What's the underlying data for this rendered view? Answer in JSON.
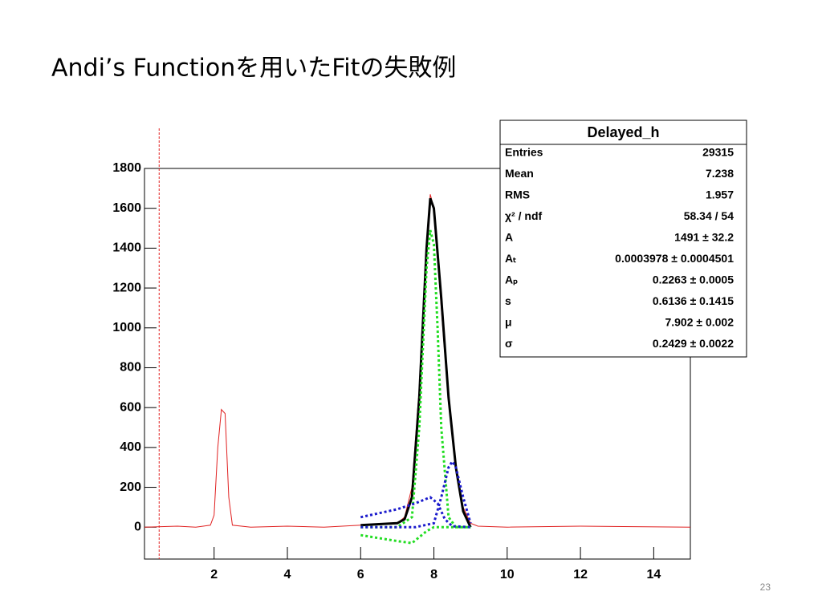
{
  "slide": {
    "title": "Andi’s Functionを用いたFitの失敗例",
    "page_number": "23"
  },
  "chart_data": {
    "type": "line",
    "xlim": [
      0.1,
      15
    ],
    "ylim": [
      -160,
      1800
    ],
    "xticks": [
      2,
      4,
      6,
      8,
      10,
      12,
      14
    ],
    "yticks": [
      0,
      200,
      400,
      600,
      800,
      1000,
      1200,
      1400,
      1600,
      1800
    ],
    "vline_x": 0.5,
    "vline_color": "#e02020",
    "series": [
      {
        "color": "#e02020",
        "dash": false,
        "x": [
          0.1,
          1.0,
          1.5,
          1.9,
          2.0,
          2.1,
          2.2,
          2.3,
          2.4,
          2.5,
          3.0,
          4.0,
          5.0,
          6.0,
          7.0,
          7.2,
          7.4,
          7.6,
          7.8,
          7.9,
          8.0,
          8.2,
          8.4,
          8.6,
          8.8,
          9.0,
          9.2,
          10,
          12,
          15
        ],
        "values": [
          0,
          5,
          0,
          10,
          60,
          400,
          590,
          570,
          150,
          10,
          0,
          5,
          0,
          10,
          20,
          50,
          200,
          700,
          1400,
          1670,
          1600,
          1100,
          620,
          300,
          100,
          20,
          5,
          0,
          5,
          0
        ]
      },
      {
        "color": "#000000",
        "dash": false,
        "x": [
          6.0,
          7.0,
          7.2,
          7.4,
          7.6,
          7.8,
          7.9,
          8.0,
          8.2,
          8.4,
          8.6,
          8.8,
          9.0
        ],
        "values": [
          10,
          20,
          40,
          150,
          650,
          1400,
          1650,
          1600,
          1150,
          650,
          300,
          80,
          0
        ]
      },
      {
        "color": "#22dd22",
        "dash": true,
        "x": [
          6.0,
          7.0,
          7.4,
          7.6,
          7.8,
          7.9,
          8.0,
          8.1,
          8.2,
          8.4,
          8.6,
          9.0
        ],
        "values": [
          0,
          0,
          50,
          500,
          1300,
          1490,
          1420,
          1000,
          500,
          50,
          0,
          0
        ]
      },
      {
        "color": "#22dd22",
        "dash": true,
        "x": [
          6.0,
          7.0,
          7.4,
          7.6,
          7.8,
          8.0,
          8.2,
          9.0
        ],
        "values": [
          -40,
          -70,
          -80,
          -50,
          -20,
          0,
          0,
          0
        ]
      },
      {
        "color": "#1a1acc",
        "dash": true,
        "x": [
          6.0,
          7.0,
          7.5,
          7.9,
          8.1,
          8.3,
          8.5,
          9.0
        ],
        "values": [
          50,
          90,
          120,
          150,
          120,
          40,
          5,
          0
        ]
      },
      {
        "color": "#1a1acc",
        "dash": true,
        "x": [
          6.0,
          7.5,
          8.0,
          8.2,
          8.4,
          8.5,
          8.6,
          8.8,
          9.0
        ],
        "values": [
          0,
          0,
          20,
          150,
          300,
          330,
          300,
          150,
          20
        ]
      }
    ]
  },
  "stats": {
    "title": "Delayed_h",
    "rows": [
      [
        "Entries",
        "29315"
      ],
      [
        "Mean",
        "7.238"
      ],
      [
        "RMS",
        "1.957"
      ],
      [
        "χ² / ndf",
        "58.34 / 54"
      ],
      [
        "A",
        "1491 ± 32.2"
      ],
      [
        "Aₜ",
        "0.0003978 ± 0.0004501"
      ],
      [
        "Aₚ",
        "0.2263 ± 0.0005"
      ],
      [
        "s",
        "0.6136 ± 0.1415"
      ],
      [
        "μ",
        "7.902 ± 0.002"
      ],
      [
        "σ",
        "0.2429 ± 0.0022"
      ]
    ]
  }
}
